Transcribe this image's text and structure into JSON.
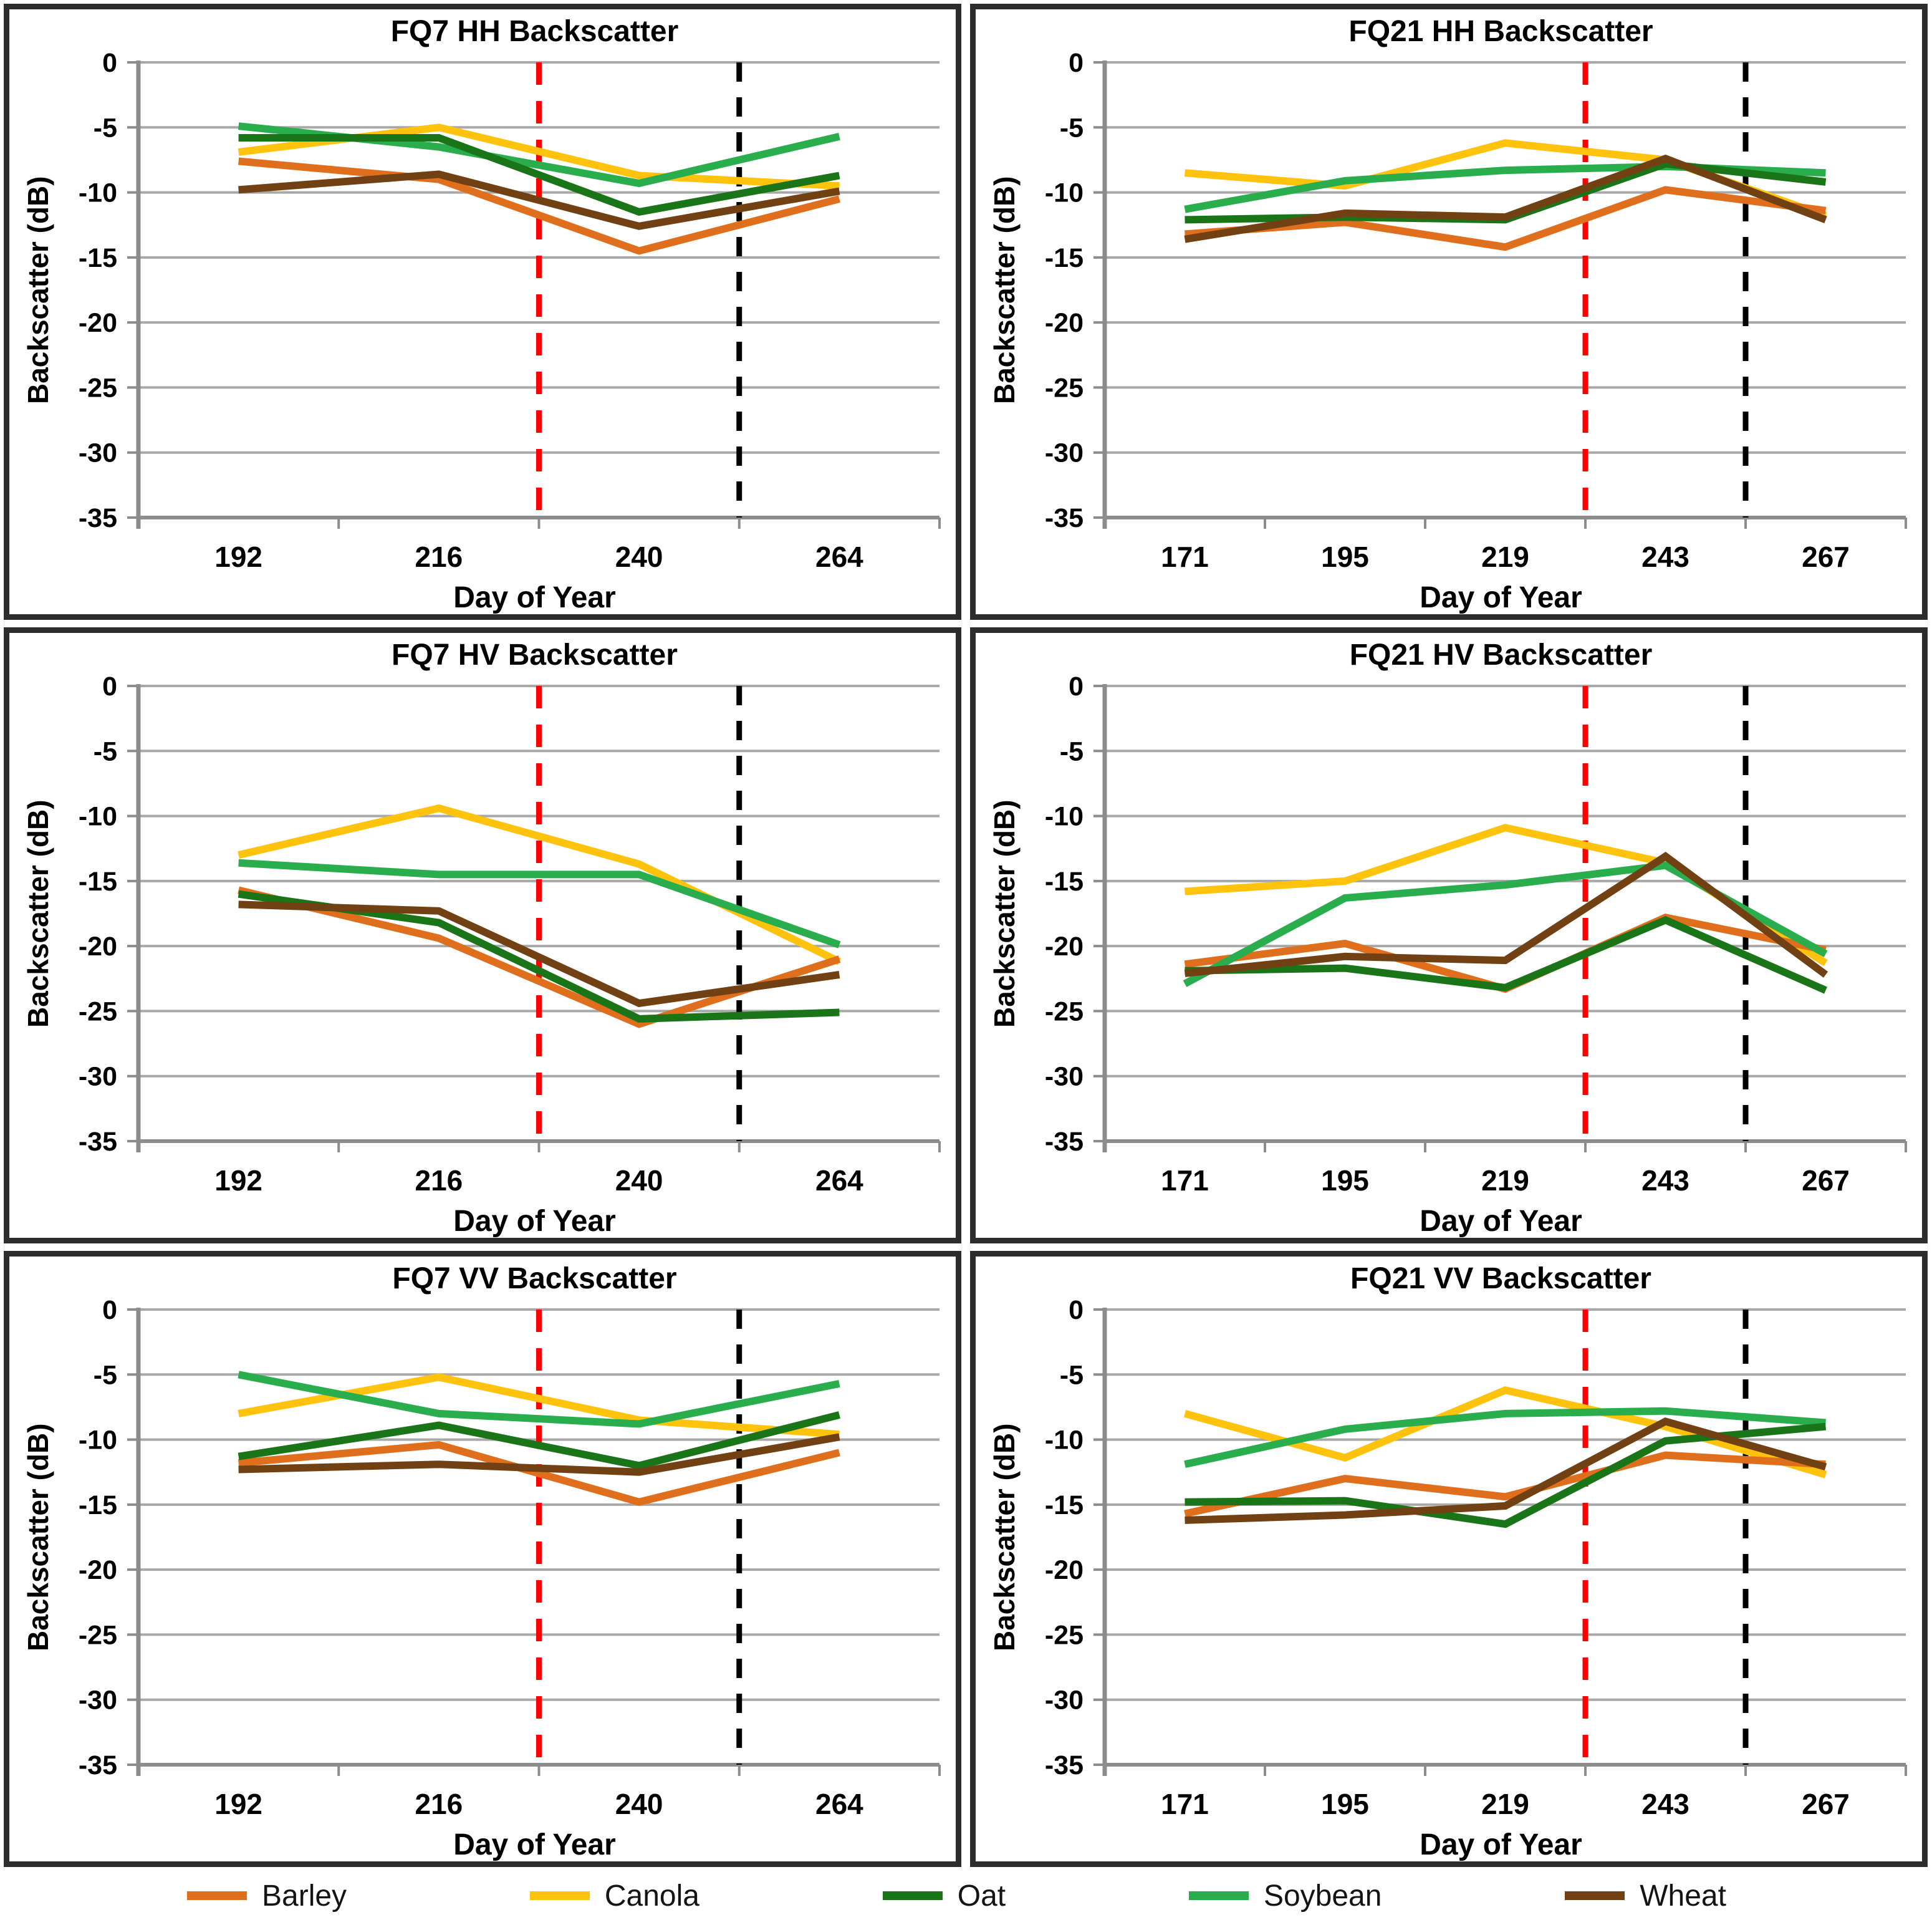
{
  "colors": {
    "barley": "#E06F1D",
    "canola": "#FFC30E",
    "oat": "#1A7519",
    "soybean": "#2AAE4D",
    "wheat": "#714114",
    "red_dash": "#FF0000",
    "black_dash": "#000000",
    "grid": "#A8A8A8",
    "axis": "#8C8C8C",
    "text": "#000000",
    "panel_border": "#2D2D2D"
  },
  "legend": {
    "position": "bottom",
    "items": [
      {
        "key": "barley",
        "label": "Barley"
      },
      {
        "key": "canola",
        "label": "Canola"
      },
      {
        "key": "oat",
        "label": "Oat"
      },
      {
        "key": "soybean",
        "label": "Soybean"
      },
      {
        "key": "wheat",
        "label": "Wheat"
      }
    ]
  },
  "chart_data": [
    {
      "type": "line",
      "title": "FQ7 HH Backscatter",
      "xlabel": "Day of Year",
      "ylabel": "Backscatter (dB)",
      "x": [
        192,
        216,
        240,
        264
      ],
      "ylim": [
        -35,
        0
      ],
      "yticks": [
        0,
        -5,
        -10,
        -15,
        -20,
        -25,
        -30,
        -35
      ],
      "grid": true,
      "vlines": [
        {
          "day": 228,
          "boundary": 2,
          "style": "dashed",
          "color_key": "red_dash"
        },
        {
          "day": 252,
          "boundary": 3,
          "style": "dashed",
          "color_key": "black_dash"
        }
      ],
      "series": [
        {
          "name": "Barley",
          "key": "barley",
          "values": [
            -7.6,
            -9.0,
            -14.5,
            -10.5
          ]
        },
        {
          "name": "Canola",
          "key": "canola",
          "values": [
            -6.9,
            -5.0,
            -8.7,
            -9.5
          ]
        },
        {
          "name": "Oat",
          "key": "oat",
          "values": [
            -5.8,
            -5.8,
            -11.5,
            -8.7
          ]
        },
        {
          "name": "Soybean",
          "key": "soybean",
          "values": [
            -4.9,
            -6.5,
            -9.3,
            -5.7
          ]
        },
        {
          "name": "Wheat",
          "key": "wheat",
          "values": [
            -9.8,
            -8.6,
            -12.6,
            -9.9
          ]
        }
      ]
    },
    {
      "type": "line",
      "title": "FQ21 HH Backscatter",
      "xlabel": "Day of Year",
      "ylabel": "Backscatter (dB)",
      "x": [
        171,
        195,
        219,
        243,
        267
      ],
      "ylim": [
        -35,
        0
      ],
      "yticks": [
        0,
        -5,
        -10,
        -15,
        -20,
        -25,
        -30,
        -35
      ],
      "grid": true,
      "vlines": [
        {
          "day": 231,
          "boundary": 3,
          "style": "dashed",
          "color_key": "red_dash"
        },
        {
          "day": 255,
          "boundary": 4,
          "style": "dashed",
          "color_key": "black_dash"
        }
      ],
      "series": [
        {
          "name": "Barley",
          "key": "barley",
          "values": [
            -13.2,
            -12.3,
            -14.2,
            -9.8,
            -11.4
          ]
        },
        {
          "name": "Canola",
          "key": "canola",
          "values": [
            -8.5,
            -9.5,
            -6.2,
            -7.5,
            -11.8
          ]
        },
        {
          "name": "Oat",
          "key": "oat",
          "values": [
            -12.1,
            -11.9,
            -12.1,
            -7.8,
            -9.2
          ]
        },
        {
          "name": "Soybean",
          "key": "soybean",
          "values": [
            -11.3,
            -9.1,
            -8.3,
            -8.0,
            -8.5
          ]
        },
        {
          "name": "Wheat",
          "key": "wheat",
          "values": [
            -13.6,
            -11.6,
            -11.9,
            -7.4,
            -12.1
          ]
        }
      ]
    },
    {
      "type": "line",
      "title": "FQ7 HV Backscatter",
      "xlabel": "Day of Year",
      "ylabel": "Backscatter (dB)",
      "x": [
        192,
        216,
        240,
        264
      ],
      "ylim": [
        -35,
        0
      ],
      "yticks": [
        0,
        -5,
        -10,
        -15,
        -20,
        -25,
        -30,
        -35
      ],
      "grid": true,
      "vlines": [
        {
          "day": 228,
          "boundary": 2,
          "style": "dashed",
          "color_key": "red_dash"
        },
        {
          "day": 252,
          "boundary": 3,
          "style": "dashed",
          "color_key": "black_dash"
        }
      ],
      "series": [
        {
          "name": "Barley",
          "key": "barley",
          "values": [
            -15.7,
            -19.4,
            -26.0,
            -21.0
          ]
        },
        {
          "name": "Canola",
          "key": "canola",
          "values": [
            -13.0,
            -9.4,
            -13.7,
            -21.2
          ]
        },
        {
          "name": "Oat",
          "key": "oat",
          "values": [
            -16.0,
            -18.2,
            -25.6,
            -25.1
          ]
        },
        {
          "name": "Soybean",
          "key": "soybean",
          "values": [
            -13.6,
            -14.5,
            -14.5,
            -19.9
          ]
        },
        {
          "name": "Wheat",
          "key": "wheat",
          "values": [
            -16.8,
            -17.3,
            -24.4,
            -22.2
          ]
        }
      ]
    },
    {
      "type": "line",
      "title": "FQ21 HV Backscatter",
      "xlabel": "Day of Year",
      "ylabel": "Backscatter (dB)",
      "x": [
        171,
        195,
        219,
        243,
        267
      ],
      "ylim": [
        -35,
        0
      ],
      "yticks": [
        0,
        -5,
        -10,
        -15,
        -20,
        -25,
        -30,
        -35
      ],
      "grid": true,
      "vlines": [
        {
          "day": 231,
          "boundary": 3,
          "style": "dashed",
          "color_key": "red_dash"
        },
        {
          "day": 255,
          "boundary": 4,
          "style": "dashed",
          "color_key": "black_dash"
        }
      ],
      "series": [
        {
          "name": "Barley",
          "key": "barley",
          "values": [
            -21.4,
            -19.8,
            -23.3,
            -17.8,
            -20.3
          ]
        },
        {
          "name": "Canola",
          "key": "canola",
          "values": [
            -15.8,
            -15.0,
            -10.9,
            -13.6,
            -21.3
          ]
        },
        {
          "name": "Oat",
          "key": "oat",
          "values": [
            -21.9,
            -21.7,
            -23.2,
            -18.0,
            -23.4
          ]
        },
        {
          "name": "Soybean",
          "key": "soybean",
          "values": [
            -22.9,
            -16.3,
            -15.3,
            -13.8,
            -20.6
          ]
        },
        {
          "name": "Wheat",
          "key": "wheat",
          "values": [
            -22.1,
            -20.8,
            -21.1,
            -13.1,
            -22.2
          ]
        }
      ]
    },
    {
      "type": "line",
      "title": "FQ7 VV Backscatter",
      "xlabel": "Day of Year",
      "ylabel": "Backscatter (dB)",
      "x": [
        192,
        216,
        240,
        264
      ],
      "ylim": [
        -35,
        0
      ],
      "yticks": [
        0,
        -5,
        -10,
        -15,
        -20,
        -25,
        -30,
        -35
      ],
      "grid": true,
      "vlines": [
        {
          "day": 228,
          "boundary": 2,
          "style": "dashed",
          "color_key": "red_dash"
        },
        {
          "day": 252,
          "boundary": 3,
          "style": "dashed",
          "color_key": "black_dash"
        }
      ],
      "series": [
        {
          "name": "Barley",
          "key": "barley",
          "values": [
            -11.8,
            -10.4,
            -14.8,
            -11.0
          ]
        },
        {
          "name": "Canola",
          "key": "canola",
          "values": [
            -8.0,
            -5.2,
            -8.5,
            -9.6
          ]
        },
        {
          "name": "Oat",
          "key": "oat",
          "values": [
            -11.3,
            -8.9,
            -12.0,
            -8.1
          ]
        },
        {
          "name": "Soybean",
          "key": "soybean",
          "values": [
            -5.0,
            -8.0,
            -8.8,
            -5.7
          ]
        },
        {
          "name": "Wheat",
          "key": "wheat",
          "values": [
            -12.3,
            -11.9,
            -12.5,
            -9.8
          ]
        }
      ]
    },
    {
      "type": "line",
      "title": "FQ21 VV Backscatter",
      "xlabel": "Day of Year",
      "ylabel": "Backscatter (dB)",
      "x": [
        171,
        195,
        219,
        243,
        267
      ],
      "ylim": [
        -35,
        0
      ],
      "yticks": [
        0,
        -5,
        -10,
        -15,
        -20,
        -25,
        -30,
        -35
      ],
      "grid": true,
      "vlines": [
        {
          "day": 231,
          "boundary": 3,
          "style": "dashed",
          "color_key": "red_dash"
        },
        {
          "day": 255,
          "boundary": 4,
          "style": "dashed",
          "color_key": "black_dash"
        }
      ],
      "series": [
        {
          "name": "Barley",
          "key": "barley",
          "values": [
            -15.7,
            -13.0,
            -14.4,
            -11.2,
            -11.9
          ]
        },
        {
          "name": "Canola",
          "key": "canola",
          "values": [
            -8.0,
            -11.4,
            -6.2,
            -9.0,
            -12.7
          ]
        },
        {
          "name": "Oat",
          "key": "oat",
          "values": [
            -14.8,
            -14.7,
            -16.5,
            -10.1,
            -9.0
          ]
        },
        {
          "name": "Soybean",
          "key": "soybean",
          "values": [
            -11.9,
            -9.2,
            -8.0,
            -7.8,
            -8.7
          ]
        },
        {
          "name": "Wheat",
          "key": "wheat",
          "values": [
            -16.2,
            -15.8,
            -15.1,
            -8.6,
            -12.1
          ]
        }
      ]
    }
  ]
}
